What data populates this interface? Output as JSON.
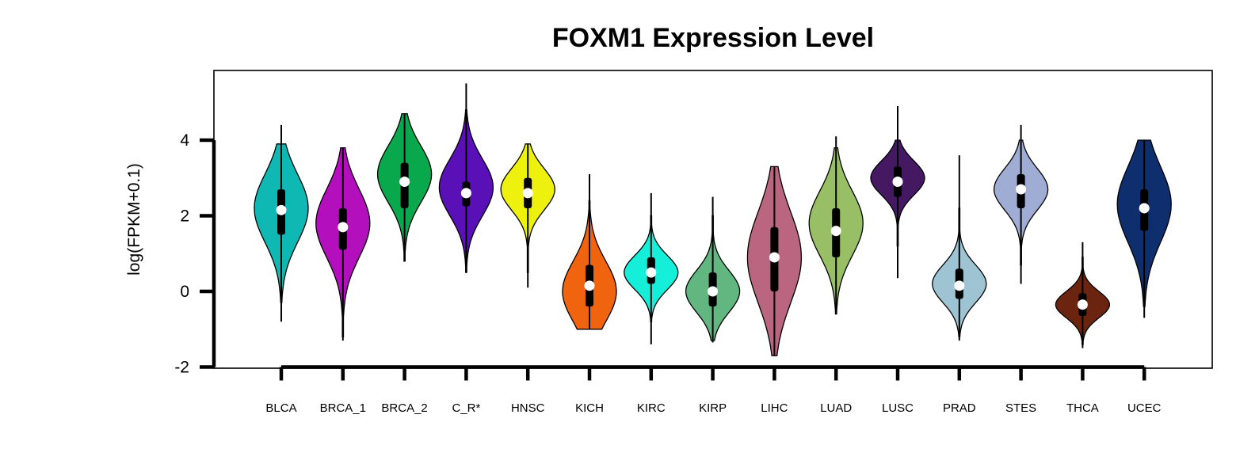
{
  "chart_data": {
    "type": "violin",
    "title": "FOXM1 Expression Level",
    "xlabel": "",
    "ylabel": "log(FPKM+0.1)",
    "ylim": [
      -2,
      5.8
    ],
    "yticks": [
      -2,
      0,
      2,
      4
    ],
    "grid": false,
    "legend": "none",
    "categories": [
      "BLCA",
      "BRCA_1",
      "BRCA_2",
      "C_R*",
      "HNSC",
      "KICH",
      "KIRC",
      "KIRP",
      "LIHC",
      "LUAD",
      "LUSC",
      "PRAD",
      "STES",
      "THCA",
      "UCEC"
    ],
    "series": [
      {
        "category": "BLCA",
        "color": "#0fb8b3",
        "min": -0.8,
        "max": 4.4,
        "vmin": -0.3,
        "vmax": 3.9,
        "mode": 2.2,
        "q1": 1.5,
        "median": 2.15,
        "q3": 2.7,
        "spread": 0.9
      },
      {
        "category": "BRCA_1",
        "color": "#b40fbd",
        "min": -1.3,
        "max": 3.8,
        "vmin": -1.2,
        "vmax": 3.8,
        "mode": 1.8,
        "q1": 1.1,
        "median": 1.7,
        "q3": 2.2,
        "spread": 0.9
      },
      {
        "category": "BRCA_2",
        "color": "#0aa84d",
        "min": 0.8,
        "max": 4.7,
        "vmin": 0.8,
        "vmax": 4.7,
        "mode": 3.1,
        "q1": 2.2,
        "median": 2.9,
        "q3": 3.4,
        "spread": 0.75
      },
      {
        "category": "C_R*",
        "color": "#5a10b7",
        "min": 0.5,
        "max": 5.5,
        "vmin": 0.5,
        "vmax": 4.8,
        "mode": 2.75,
        "q1": 2.25,
        "median": 2.6,
        "q3": 2.9,
        "spread": 0.75
      },
      {
        "category": "HNSC",
        "color": "#eef00e",
        "min": 0.1,
        "max": 3.9,
        "vmin": 0.5,
        "vmax": 3.9,
        "mode": 2.7,
        "q1": 2.2,
        "median": 2.6,
        "q3": 3.0,
        "spread": 0.55
      },
      {
        "category": "KICH",
        "color": "#f06410",
        "min": -1.0,
        "max": 3.1,
        "vmin": -1.0,
        "vmax": 2.4,
        "mode": 0.0,
        "q1": -0.4,
        "median": 0.15,
        "q3": 0.7,
        "spread": 0.8
      },
      {
        "category": "KIRC",
        "color": "#15eed8",
        "min": -1.4,
        "max": 2.6,
        "vmin": -0.8,
        "vmax": 2.0,
        "mode": 0.5,
        "q1": 0.2,
        "median": 0.5,
        "q3": 0.9,
        "spread": 0.45
      },
      {
        "category": "KIRP",
        "color": "#62b781",
        "min": -1.35,
        "max": 2.5,
        "vmin": -1.3,
        "vmax": 2.0,
        "mode": 0.0,
        "q1": -0.4,
        "median": 0.0,
        "q3": 0.5,
        "spread": 0.55
      },
      {
        "category": "LIHC",
        "color": "#bb6681",
        "min": -1.7,
        "max": 3.3,
        "vmin": -1.7,
        "vmax": 3.3,
        "mode": 0.9,
        "q1": 0.0,
        "median": 0.9,
        "q3": 1.7,
        "spread": 1.2
      },
      {
        "category": "LUAD",
        "color": "#98be66",
        "min": -0.6,
        "max": 4.1,
        "vmin": -0.6,
        "vmax": 3.8,
        "mode": 1.8,
        "q1": 0.9,
        "median": 1.6,
        "q3": 2.2,
        "spread": 0.85
      },
      {
        "category": "LUSC",
        "color": "#451862",
        "min": 0.35,
        "max": 4.9,
        "vmin": 1.2,
        "vmax": 4.0,
        "mode": 3.0,
        "q1": 2.5,
        "median": 2.9,
        "q3": 3.3,
        "spread": 0.45
      },
      {
        "category": "PRAD",
        "color": "#9ec4d4",
        "min": -1.3,
        "max": 3.6,
        "vmin": -1.2,
        "vmax": 2.2,
        "mode": 0.2,
        "q1": -0.2,
        "median": 0.15,
        "q3": 0.6,
        "spread": 0.5
      },
      {
        "category": "STES",
        "color": "#9fadd4",
        "min": 0.2,
        "max": 4.4,
        "vmin": 0.7,
        "vmax": 4.0,
        "mode": 2.7,
        "q1": 2.2,
        "median": 2.7,
        "q3": 3.1,
        "spread": 0.55
      },
      {
        "category": "THCA",
        "color": "#6b2410",
        "min": -1.5,
        "max": 1.3,
        "vmin": -1.4,
        "vmax": 0.9,
        "mode": -0.35,
        "q1": -0.65,
        "median": -0.35,
        "q3": -0.05,
        "spread": 0.35
      },
      {
        "category": "UCEC",
        "color": "#0f2e6e",
        "min": -0.7,
        "max": 4.0,
        "vmin": -0.4,
        "vmax": 4.0,
        "mode": 2.3,
        "q1": 1.6,
        "median": 2.2,
        "q3": 2.7,
        "spread": 1.0
      }
    ]
  }
}
